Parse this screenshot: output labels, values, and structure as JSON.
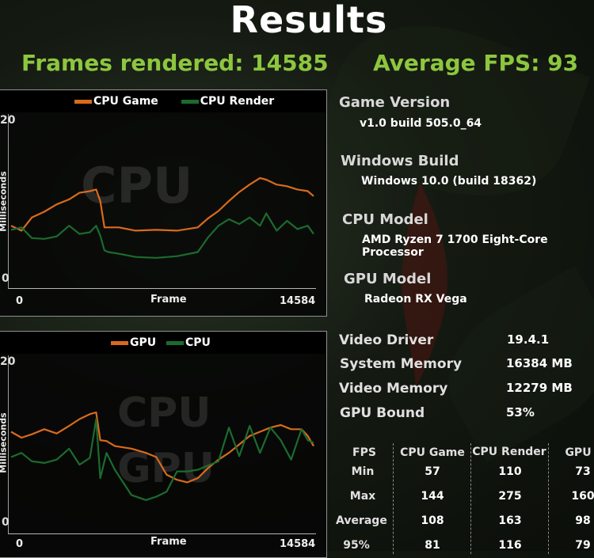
{
  "title": "Results",
  "frames_rendered": "Frames rendered: 14585",
  "average_fps": "Average FPS: 93",
  "colors": {
    "accent_green": "#8dc63f",
    "series_orange": "#d96a1d",
    "series_green": "#1c6b2e"
  },
  "chart_data": [
    {
      "type": "line",
      "watermark": "CPU",
      "xlabel": "Frame",
      "ylabel": "Milliseconds",
      "x_ticks": [
        "0",
        "14584"
      ],
      "y_ticks": [
        "20",
        "0"
      ],
      "xlim": [
        0,
        14584
      ],
      "ylim": [
        0,
        20
      ],
      "legend_position": "top",
      "series": [
        {
          "name": "CPU Game",
          "color": "#d96a1d",
          "x": [
            0,
            500,
            1000,
            1600,
            2200,
            2800,
            3300,
            3800,
            4100,
            4300,
            4500,
            4700,
            5200,
            6000,
            7000,
            8000,
            9000,
            9500,
            10000,
            10500,
            11000,
            11500,
            12000,
            12300,
            12800,
            13300,
            13800,
            14300,
            14584
          ],
          "y": [
            7.0,
            6.4,
            8.0,
            8.7,
            9.6,
            10.2,
            11.0,
            11.2,
            11.4,
            10.0,
            6.8,
            6.8,
            6.8,
            6.4,
            6.5,
            6.4,
            6.8,
            7.9,
            8.8,
            10.0,
            11.1,
            12.0,
            12.8,
            12.6,
            12.0,
            11.8,
            11.4,
            11.2,
            10.6
          ]
        },
        {
          "name": "CPU Render",
          "color": "#1c6b2e",
          "x": [
            0,
            500,
            1000,
            1600,
            2200,
            2800,
            3300,
            3800,
            4100,
            4300,
            4500,
            4700,
            5200,
            6000,
            7000,
            8000,
            9000,
            9500,
            10000,
            10500,
            11000,
            11500,
            12000,
            12300,
            12800,
            13300,
            13800,
            14300,
            14584
          ],
          "y": [
            6.5,
            6.8,
            5.5,
            5.4,
            5.7,
            7.0,
            6.0,
            6.2,
            7.0,
            5.8,
            4.0,
            3.8,
            3.6,
            3.2,
            3.1,
            3.3,
            3.8,
            5.6,
            7.0,
            7.8,
            7.2,
            8.0,
            7.0,
            8.5,
            6.4,
            7.6,
            6.6,
            7.0,
            6.0
          ]
        }
      ]
    },
    {
      "type": "line",
      "watermark": "CPU GPU",
      "xlabel": "Frame",
      "ylabel": "Milliseconds",
      "x_ticks": [
        "0",
        "14584"
      ],
      "y_ticks": [
        "20",
        "0"
      ],
      "xlim": [
        0,
        14584
      ],
      "ylim": [
        0,
        20
      ],
      "legend_position": "top",
      "series": [
        {
          "name": "GPU",
          "color": "#d96a1d",
          "x": [
            0,
            500,
            1000,
            1600,
            2200,
            2800,
            3300,
            3800,
            4100,
            4300,
            4600,
            5000,
            5800,
            6500,
            7000,
            7500,
            8000,
            8500,
            9000,
            9500,
            10000,
            10500,
            11000,
            11500,
            12000,
            12500,
            13000,
            13500,
            14000,
            14300,
            14584
          ],
          "y": [
            11.5,
            10.8,
            11.2,
            11.8,
            11.3,
            12.2,
            13.0,
            13.6,
            13.8,
            10.5,
            10.4,
            9.8,
            9.5,
            9.0,
            8.5,
            6.4,
            5.8,
            5.5,
            6.0,
            7.2,
            8.2,
            9.0,
            10.0,
            11.0,
            11.5,
            12.0,
            12.3,
            11.8,
            11.8,
            11.0,
            9.8
          ]
        },
        {
          "name": "CPU",
          "color": "#1c6b2e",
          "x": [
            0,
            500,
            1000,
            1600,
            2200,
            2800,
            3300,
            3800,
            4100,
            4300,
            4600,
            5000,
            5800,
            6500,
            7000,
            7500,
            8000,
            8500,
            9000,
            9500,
            10000,
            10500,
            11000,
            11500,
            12000,
            12500,
            13000,
            13500,
            14000,
            14300,
            14584
          ],
          "y": [
            8.5,
            9.0,
            8.0,
            7.8,
            8.2,
            9.5,
            7.6,
            8.4,
            13.0,
            6.0,
            9.0,
            7.0,
            4.0,
            3.4,
            3.8,
            4.4,
            6.8,
            6.8,
            7.0,
            7.5,
            8.0,
            12.0,
            8.6,
            12.2,
            9.0,
            12.0,
            10.5,
            8.2,
            11.8,
            10.5,
            10.2
          ]
        }
      ]
    }
  ],
  "info": {
    "game_version": {
      "label": "Game Version",
      "value": "v1.0 build 505.0_64"
    },
    "windows_build": {
      "label": "Windows Build",
      "value": "Windows 10.0 (build 18362)"
    },
    "cpu_model": {
      "label": "CPU Model",
      "value": "AMD Ryzen 7 1700 Eight-Core Processor"
    },
    "gpu_model": {
      "label": "GPU Model",
      "value": "Radeon RX Vega"
    }
  },
  "stats": [
    {
      "label": "Video Driver",
      "value": "19.4.1"
    },
    {
      "label": "System Memory",
      "value": "16384 MB"
    },
    {
      "label": "Video Memory",
      "value": "12279 MB"
    },
    {
      "label": "GPU Bound",
      "value": "53%"
    }
  ],
  "fps_table": {
    "headers": [
      "FPS",
      "CPU Game",
      "CPU Render",
      "GPU"
    ],
    "rows": [
      {
        "label": "Min",
        "values": [
          "57",
          "110",
          "73"
        ]
      },
      {
        "label": "Max",
        "values": [
          "144",
          "275",
          "160"
        ]
      },
      {
        "label": "Average",
        "values": [
          "108",
          "163",
          "98"
        ]
      },
      {
        "label": "95%",
        "values": [
          "81",
          "116",
          "79"
        ]
      }
    ]
  }
}
